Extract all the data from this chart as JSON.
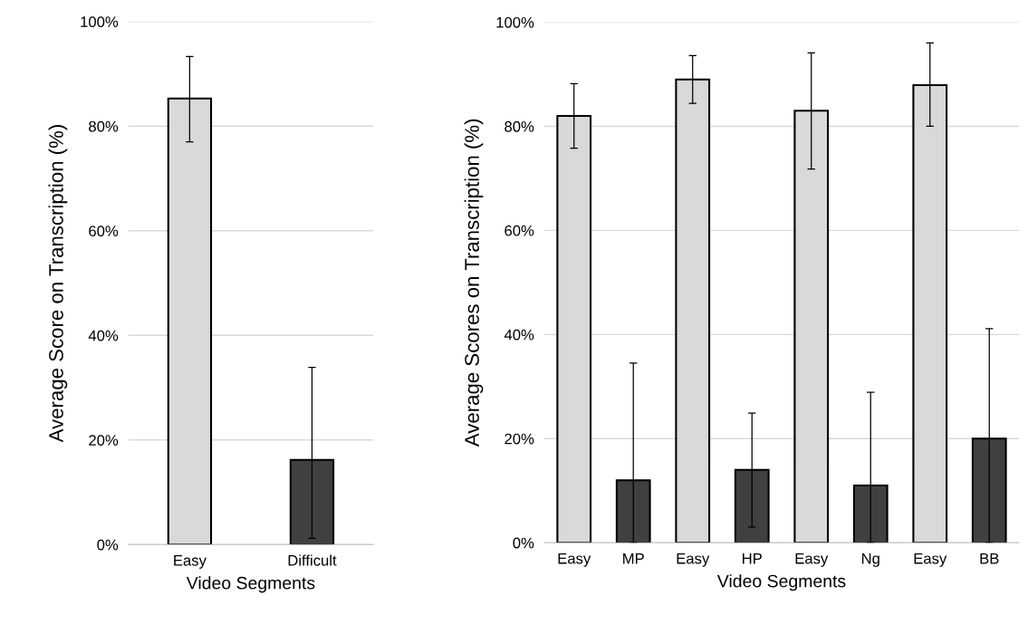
{
  "chart_data": [
    {
      "type": "bar",
      "xlabel": "Video Segments",
      "ylabel": "Average Score on Transcription (%)",
      "categories": [
        "Easy",
        "Difficult"
      ],
      "values": [
        85.3,
        16.2
      ],
      "colors": [
        "#d9d9d9",
        "#404040"
      ],
      "errors": [
        [
          77.0,
          93.3
        ],
        [
          1.2,
          33.9
        ]
      ],
      "ylim": [
        0,
        100
      ],
      "yticks": [
        {
          "value": 0,
          "label": "0%"
        },
        {
          "value": 20,
          "label": "20%"
        },
        {
          "value": 40,
          "label": "40%"
        },
        {
          "value": 60,
          "label": "60%"
        },
        {
          "value": 80,
          "label": "80%"
        },
        {
          "value": 100,
          "label": "100%"
        }
      ],
      "grid": "y"
    },
    {
      "type": "bar",
      "xlabel": "Video Segments",
      "ylabel": "Average Scores on Transcription (%)",
      "categories": [
        "Easy",
        "MP",
        "Easy",
        "HP",
        "Easy",
        "Ng",
        "Easy",
        "BB"
      ],
      "values": [
        82.0,
        12.0,
        89.0,
        14.0,
        83.0,
        11.0,
        87.9,
        20.0
      ],
      "colors": [
        "#d9d9d9",
        "#404040",
        "#d9d9d9",
        "#404040",
        "#d9d9d9",
        "#404040",
        "#d9d9d9",
        "#404040"
      ],
      "errors": [
        [
          75.8,
          88.2
        ],
        [
          0,
          34.5
        ],
        [
          84.4,
          93.6
        ],
        [
          3.0,
          24.9
        ],
        [
          71.8,
          94.1
        ],
        [
          0,
          28.9
        ],
        [
          80.0,
          96.0
        ],
        [
          0,
          41.1
        ]
      ],
      "ylim": [
        0,
        100
      ],
      "yticks": [
        {
          "value": 0,
          "label": "0%"
        },
        {
          "value": 20,
          "label": "20%"
        },
        {
          "value": 40,
          "label": "40%"
        },
        {
          "value": 60,
          "label": "60%"
        },
        {
          "value": 80,
          "label": "80%"
        },
        {
          "value": 100,
          "label": "100%"
        }
      ],
      "grid": "y"
    }
  ]
}
